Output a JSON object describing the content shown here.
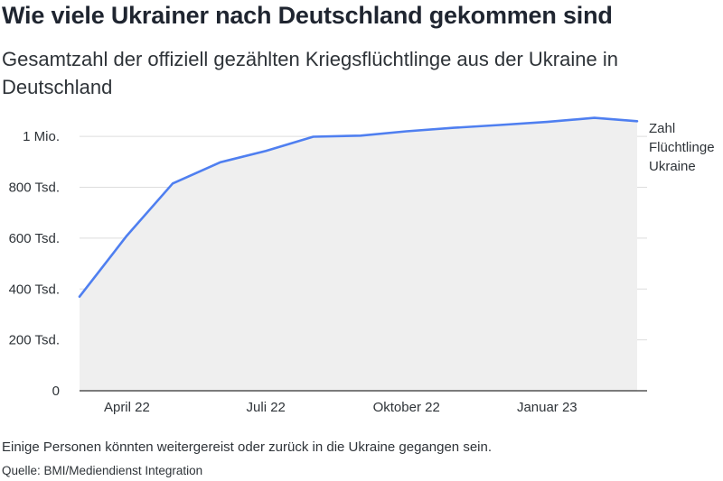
{
  "chart_data": {
    "type": "area",
    "title": "Wie viele Ukrainer nach Deutschland gekommen sind",
    "subtitle": "Gesamtzahl der offiziell gezählten Kriegsflüchtlinge aus der Ukraine in Deutschland",
    "x": [
      "2022-03-01",
      "2022-04-01",
      "2022-05-01",
      "2022-06-01",
      "2022-07-01",
      "2022-08-01",
      "2022-09-01",
      "2022-10-01",
      "2022-11-01",
      "2022-12-01",
      "2023-01-01",
      "2023-02-01",
      "2023-03-01"
    ],
    "series": [
      {
        "name": "Zahl Flüchtlinge Ukraine",
        "values": [
          370000,
          610000,
          815000,
          898000,
          943000,
          999000,
          1003000,
          1020000,
          1034000,
          1045000,
          1057000,
          1073000,
          1060000
        ]
      }
    ],
    "x_ticks": [
      "April 22",
      "Juli 22",
      "Oktober 22",
      "Januar 23"
    ],
    "y_ticks": [
      {
        "value": 0,
        "label": "0"
      },
      {
        "value": 200000,
        "label": "200 Tsd."
      },
      {
        "value": 400000,
        "label": "400 Tsd."
      },
      {
        "value": 600000,
        "label": "600 Tsd."
      },
      {
        "value": 800000,
        "label": "800 Tsd."
      },
      {
        "value": 1000000,
        "label": "1 Mio."
      }
    ],
    "ylim": [
      0,
      1100000
    ],
    "grid": true,
    "colors": {
      "line": "#4f7ff0",
      "area": "#efefef",
      "grid": "#dddddd",
      "axis": "#333333"
    }
  },
  "series_label_lines": [
    "Zahl",
    "Flüchtlinge",
    "Ukraine"
  ],
  "note": "Einige Personen könnten weitergereist oder zurück in die Ukraine gegangen sein.",
  "source": "Quelle: BMI/Mediendienst Integration"
}
